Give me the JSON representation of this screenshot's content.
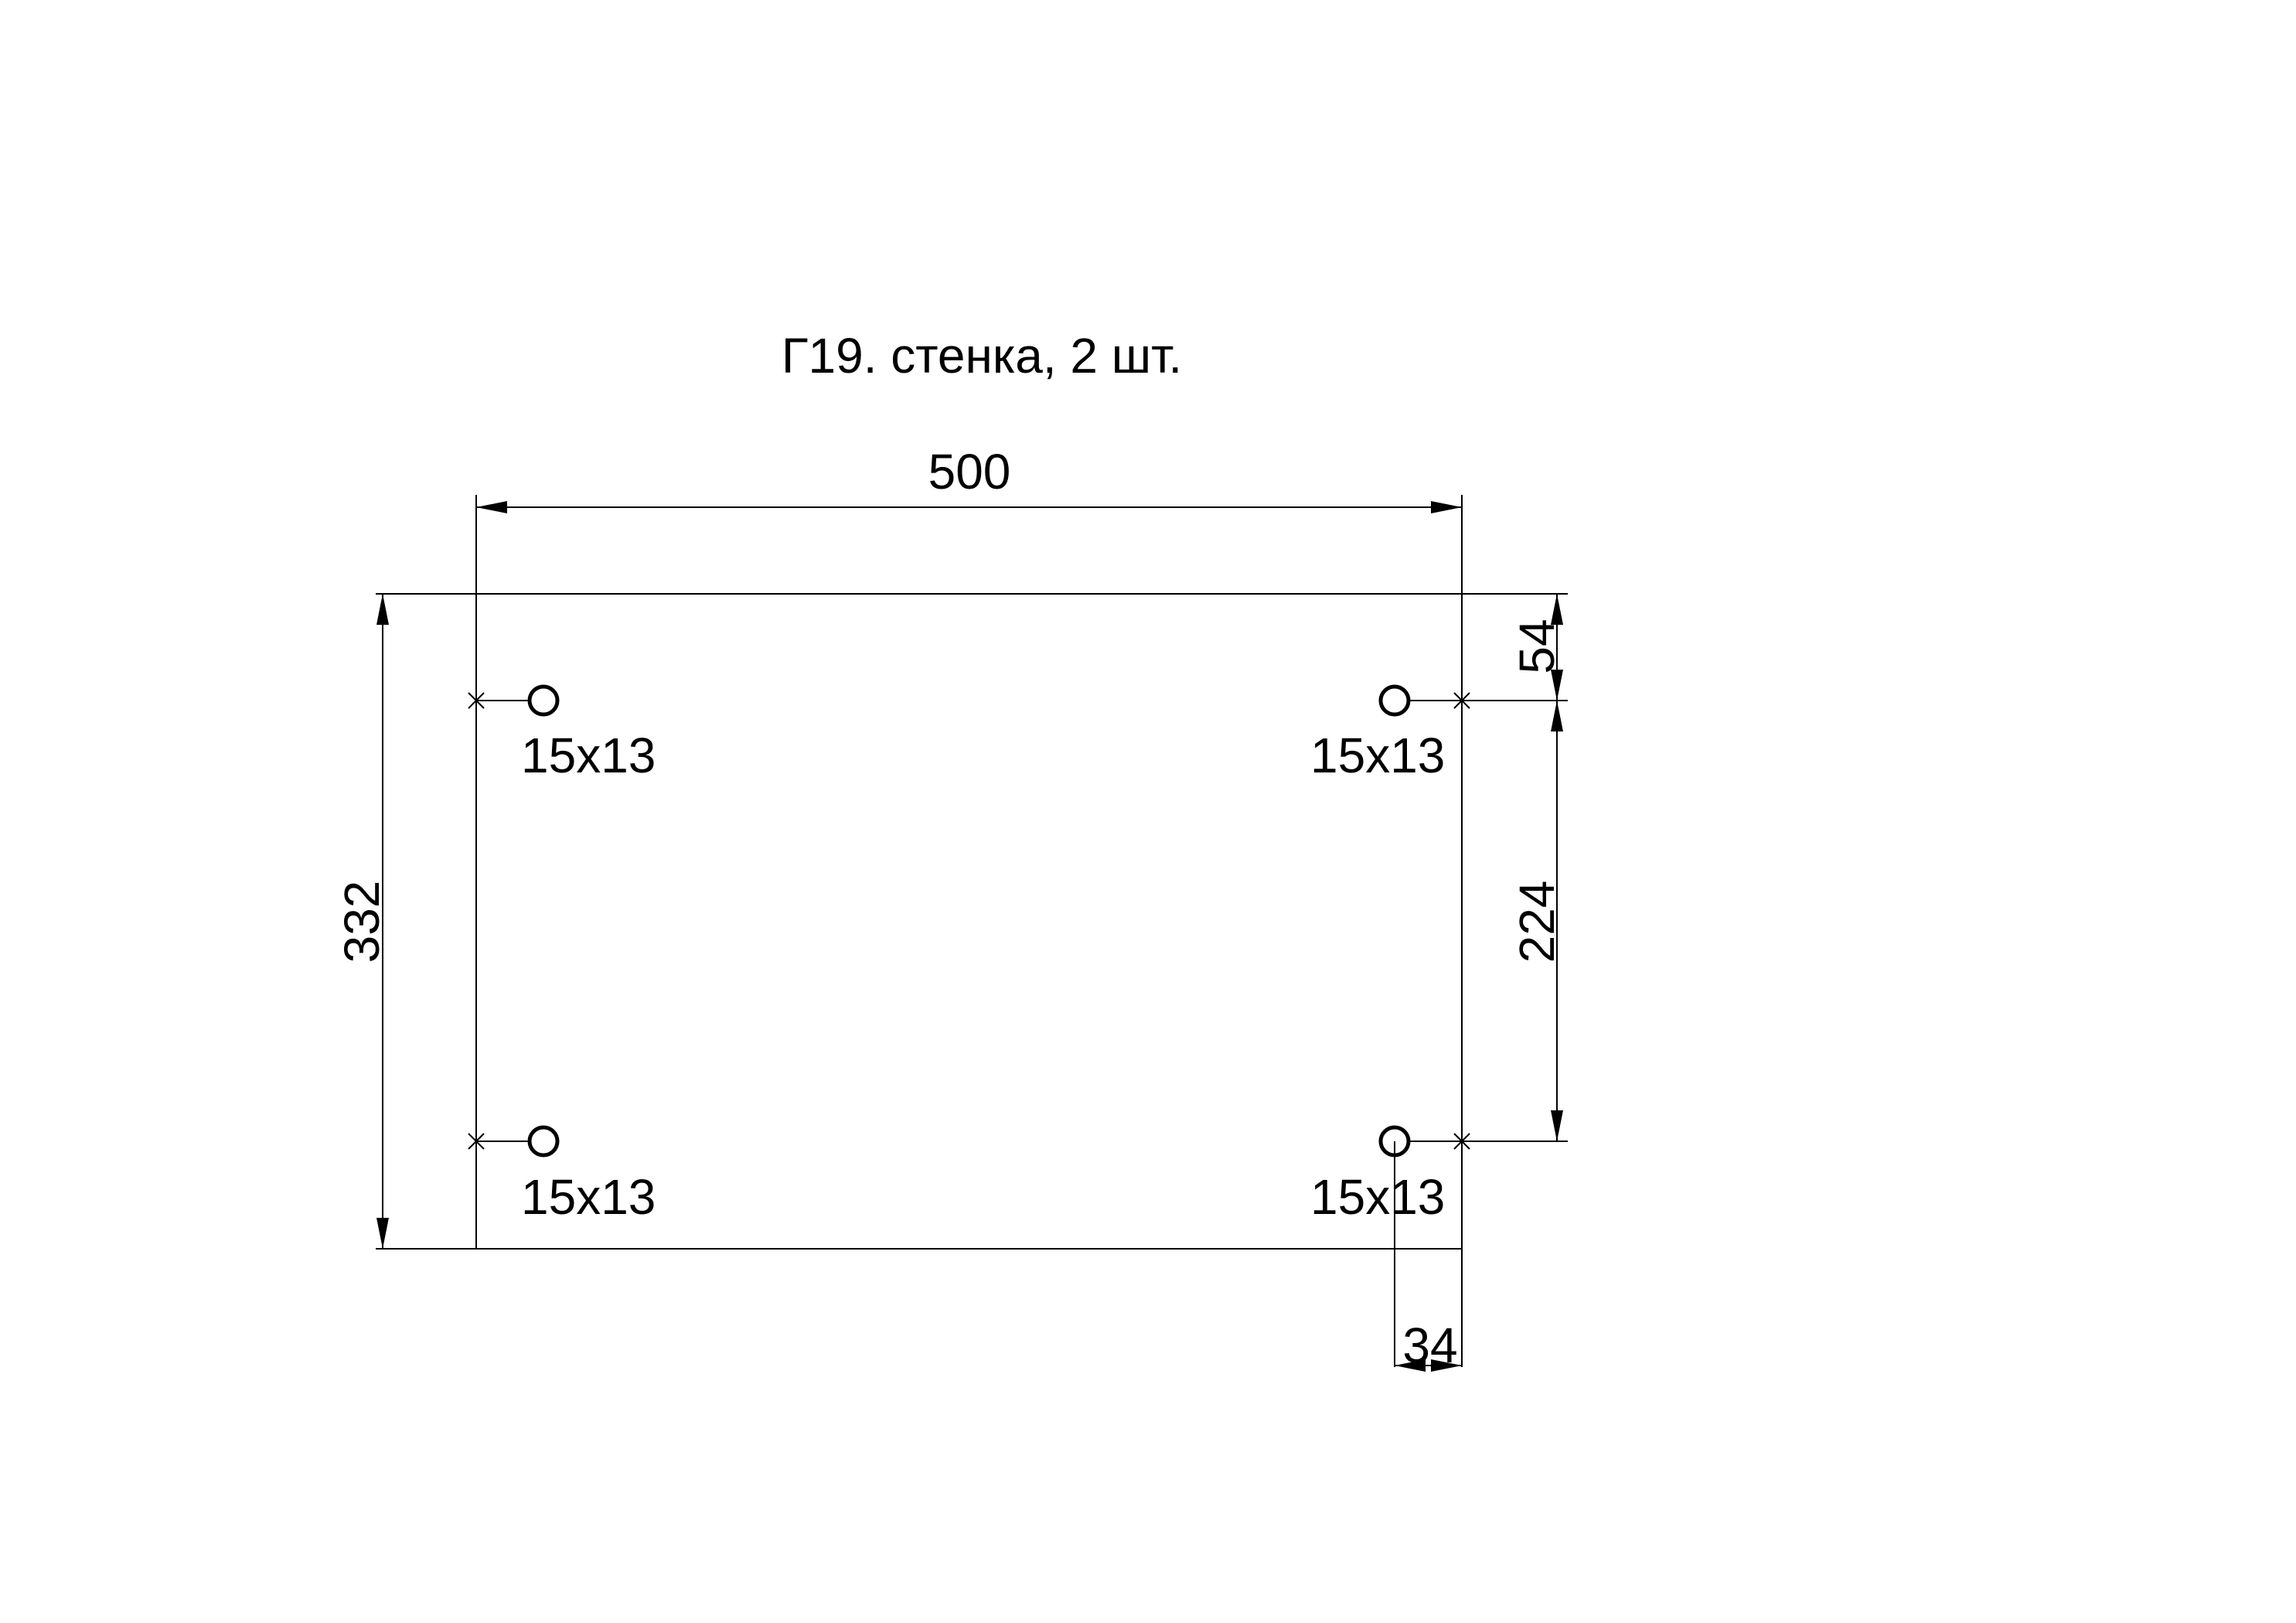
{
  "title": "Г19. стенка, 2 шт.",
  "dimensions": {
    "width": "500",
    "height": "332",
    "hole_offset_top": "54",
    "hole_spacing": "224",
    "hole_offset_edge": "34"
  },
  "holes": [
    {
      "label": "15x13"
    },
    {
      "label": "15x13"
    },
    {
      "label": "15x13"
    },
    {
      "label": "15x13"
    }
  ]
}
